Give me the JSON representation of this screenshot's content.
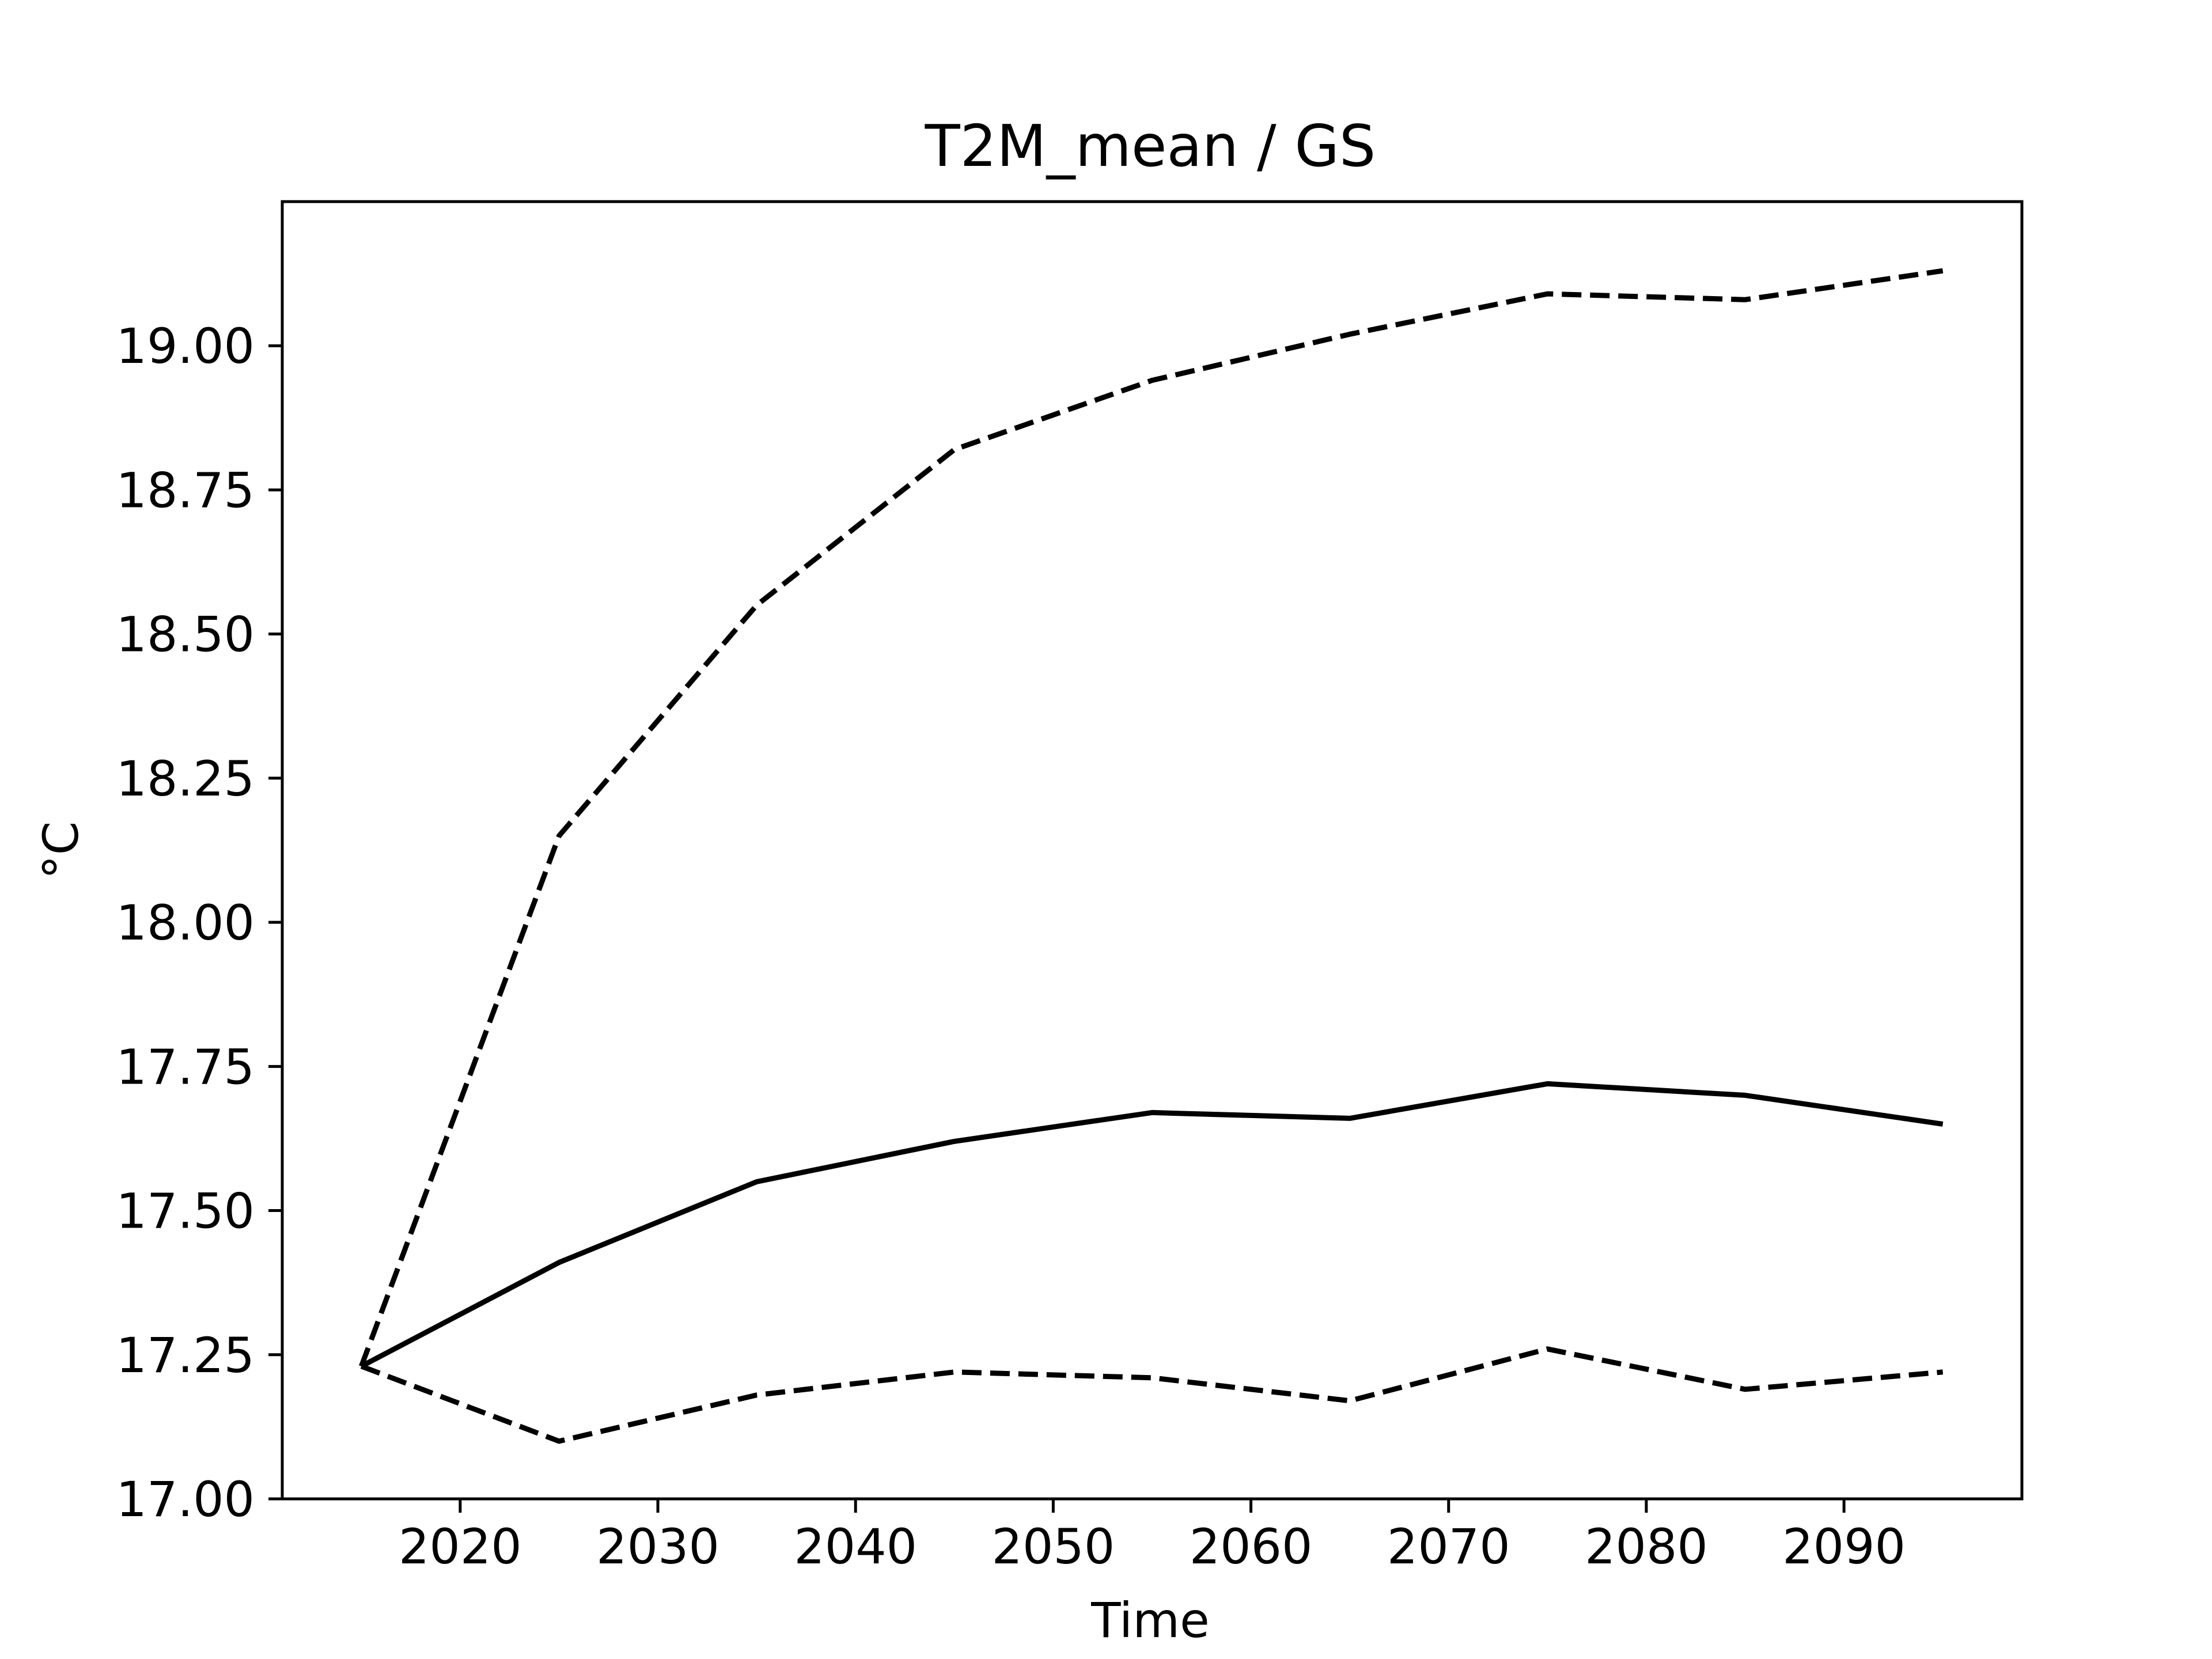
{
  "chart_data": {
    "type": "line",
    "title": "T2M_mean / GS",
    "xlabel": "Time",
    "ylabel": "°C",
    "xlim": [
      2011,
      2099
    ],
    "ylim": [
      17.0,
      19.25
    ],
    "xticks": [
      2020,
      2030,
      2040,
      2050,
      2060,
      2070,
      2080,
      2090
    ],
    "xtick_labels": [
      "2020",
      "2030",
      "2040",
      "2050",
      "2060",
      "2070",
      "2080",
      "2090"
    ],
    "yticks": [
      17.0,
      17.25,
      17.5,
      17.75,
      18.0,
      18.25,
      18.5,
      18.75,
      19.0
    ],
    "ytick_labels": [
      "17.00",
      "17.25",
      "17.50",
      "17.75",
      "18.00",
      "18.25",
      "18.50",
      "18.75",
      "19.00"
    ],
    "grid": false,
    "x": [
      2015,
      2025,
      2035,
      2045,
      2055,
      2065,
      2075,
      2085,
      2095
    ],
    "series": [
      {
        "line_style": "dashed",
        "color": "#000000",
        "values": [
          17.23,
          18.15,
          18.55,
          18.82,
          18.94,
          19.02,
          19.09,
          19.08,
          19.13
        ]
      },
      {
        "line_style": "solid",
        "color": "#000000",
        "values": [
          17.23,
          17.41,
          17.55,
          17.62,
          17.67,
          17.66,
          17.72,
          17.7,
          17.65
        ]
      },
      {
        "line_style": "dashed",
        "color": "#000000",
        "values": [
          17.23,
          17.1,
          17.18,
          17.22,
          17.21,
          17.17,
          17.26,
          17.19,
          17.22
        ]
      }
    ]
  }
}
